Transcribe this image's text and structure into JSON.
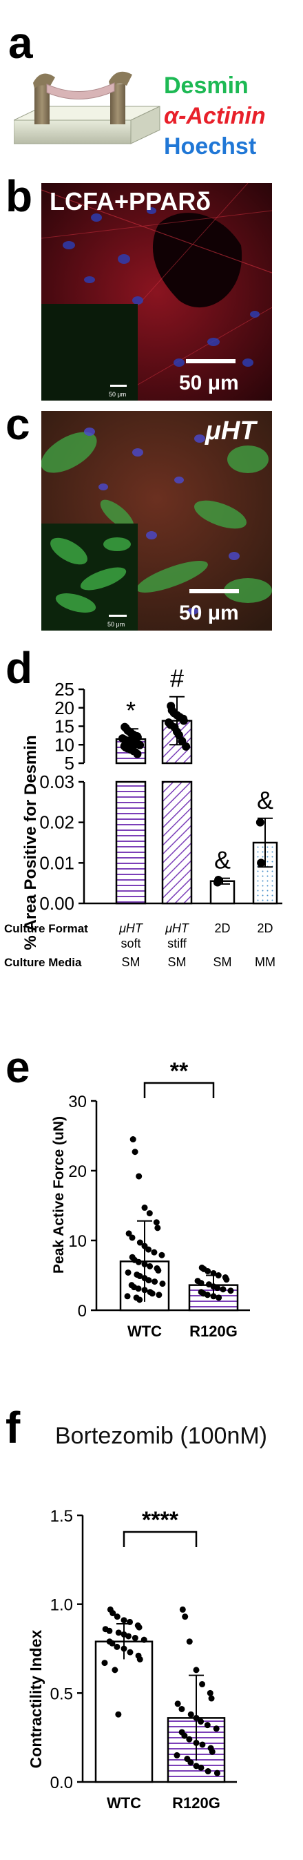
{
  "panels": {
    "a": {
      "letter": "a",
      "legend": [
        {
          "label": "Desmin",
          "color": "#1db954"
        },
        {
          "label": "α-Actinin",
          "color": "#e8202a"
        },
        {
          "label": "Hoechst",
          "color": "#2077d6"
        }
      ]
    },
    "b": {
      "letter": "b",
      "condition": "LCFA+PPARδ",
      "scale_main": "50 μm",
      "scale_inset": "50 μm"
    },
    "c": {
      "letter": "c",
      "condition": "μHT",
      "scale_main": "50 μm",
      "scale_inset": "50 μm"
    },
    "d": {
      "letter": "d"
    },
    "e": {
      "letter": "e"
    },
    "f": {
      "letter": "f"
    }
  },
  "chart_data": [
    {
      "id": "d",
      "type": "bar",
      "ylabel": "% Area Positive for Desmin",
      "axis_break": true,
      "y_upper": {
        "range": [
          5,
          25
        ],
        "ticks": [
          5,
          10,
          15,
          20,
          25
        ]
      },
      "y_lower": {
        "range": [
          0,
          0.03
        ],
        "ticks": [
          0.0,
          0.01,
          0.02,
          0.03
        ]
      },
      "row_labels": [
        "Culture Format",
        "Culture Media"
      ],
      "categories": [
        {
          "format": [
            "μHT",
            "soft"
          ],
          "media": "SM",
          "mean": 11.5,
          "sd": 2.8,
          "significance": "*",
          "pattern": "horizontal-stripes",
          "points": [
            14.8,
            14.5,
            13.8,
            13.2,
            12.7,
            12.3,
            12.0,
            11.7,
            11.4,
            11.1,
            10.8,
            10.5,
            10.2,
            9.9,
            9.6,
            9.3,
            9.0,
            8.7,
            8.3,
            7.5
          ]
        },
        {
          "format": [
            "μHT",
            "stiff"
          ],
          "media": "SM",
          "mean": 16.5,
          "sd": 6.5,
          "significance": "#",
          "pattern": "diagonal-stripes",
          "points": [
            20.5,
            19.3,
            18.6,
            18.0,
            17.5,
            17.0,
            16.5,
            16.0,
            15.4,
            14.7,
            13.5,
            12.6,
            11.0,
            9.5
          ]
        },
        {
          "format": [
            "2D"
          ],
          "media": "SM",
          "mean": 0.0055,
          "sd": 0.0007,
          "significance": "&",
          "pattern": "none",
          "points": [
            0.0052,
            0.0058
          ]
        },
        {
          "format": [
            "2D"
          ],
          "media": "MM",
          "mean": 0.015,
          "sd": 0.006,
          "significance": "&",
          "pattern": "dots",
          "points": [
            0.02,
            0.01
          ]
        }
      ]
    },
    {
      "id": "e",
      "type": "bar",
      "ylabel": "Peak Active Force (uN)",
      "ylim": [
        0,
        30
      ],
      "yticks": [
        0,
        10,
        20,
        30
      ],
      "categories": [
        "WTC",
        "R120G"
      ],
      "series": [
        {
          "name": "WTC",
          "mean": 7.0,
          "sd": 5.8,
          "points": [
            24.5,
            22.7,
            19.2,
            14.7,
            13.9,
            12.6,
            11.8,
            11.0,
            10.4,
            9.7,
            9.2,
            8.7,
            8.3,
            7.9,
            7.6,
            7.2,
            6.9,
            6.6,
            6.3,
            6.0,
            5.7,
            5.4,
            5.1,
            4.9,
            4.6,
            4.3,
            4.1,
            3.8,
            3.6,
            3.3,
            3.1,
            2.9,
            2.6,
            2.4,
            2.2,
            2.0,
            1.8,
            1.5
          ]
        },
        {
          "name": "R120G",
          "mean": 3.6,
          "sd": 1.4,
          "points": [
            6.1,
            5.9,
            5.6,
            5.3,
            5.0,
            4.7,
            4.4,
            4.2,
            3.9,
            3.7,
            3.4,
            3.2,
            3.0,
            2.8,
            2.6,
            2.4,
            2.2,
            2.0,
            1.8
          ]
        }
      ],
      "significance": "**"
    },
    {
      "id": "f",
      "type": "bar",
      "title": "Bortezomib (100nM)",
      "ylabel": "Contractility Index",
      "ylim": [
        0,
        1.5
      ],
      "yticks": [
        0.0,
        0.5,
        1.0,
        1.5
      ],
      "categories": [
        "WTC",
        "R120G"
      ],
      "series": [
        {
          "name": "WTC",
          "mean": 0.79,
          "sd": 0.1,
          "points": [
            0.97,
            0.95,
            0.93,
            0.91,
            0.9,
            0.88,
            0.87,
            0.86,
            0.85,
            0.84,
            0.83,
            0.82,
            0.81,
            0.8,
            0.79,
            0.78,
            0.76,
            0.75,
            0.73,
            0.71,
            0.69,
            0.67,
            0.63,
            0.38
          ]
        },
        {
          "name": "R120G",
          "mean": 0.36,
          "sd": 0.24,
          "points": [
            0.97,
            0.93,
            0.79,
            0.63,
            0.55,
            0.5,
            0.47,
            0.44,
            0.41,
            0.38,
            0.36,
            0.34,
            0.32,
            0.3,
            0.28,
            0.26,
            0.24,
            0.22,
            0.21,
            0.19,
            0.17,
            0.15,
            0.13,
            0.11,
            0.09,
            0.08,
            0.06,
            0.05
          ]
        }
      ],
      "significance": "****"
    }
  ]
}
